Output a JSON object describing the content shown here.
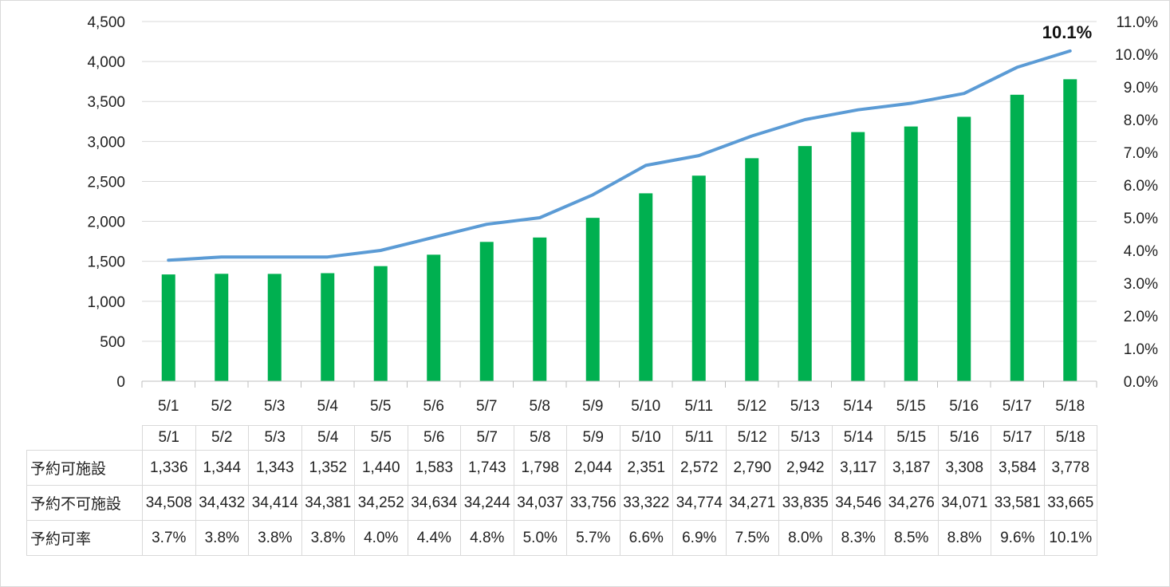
{
  "chart_data": {
    "type": "bar",
    "categories": [
      "5/1",
      "5/2",
      "5/3",
      "5/4",
      "5/5",
      "5/6",
      "5/7",
      "5/8",
      "5/9",
      "5/10",
      "5/11",
      "5/12",
      "5/13",
      "5/14",
      "5/15",
      "5/16",
      "5/17",
      "5/18"
    ],
    "series": [
      {
        "name": "予約可施設",
        "type": "bar",
        "axis": "left",
        "color": "#00b050",
        "values": [
          1336,
          1344,
          1343,
          1352,
          1440,
          1583,
          1743,
          1798,
          2044,
          2351,
          2572,
          2790,
          2942,
          3117,
          3187,
          3308,
          3584,
          3778
        ]
      },
      {
        "name": "予約可率",
        "type": "line",
        "axis": "right",
        "color": "#5b9bd5",
        "values": [
          3.7,
          3.8,
          3.8,
          3.8,
          4.0,
          4.4,
          4.8,
          5.0,
          5.7,
          6.6,
          6.9,
          7.5,
          8.0,
          8.3,
          8.5,
          8.8,
          9.6,
          10.1
        ]
      }
    ],
    "ylim": [
      0,
      4500
    ],
    "y2lim": [
      0,
      11
    ],
    "yticks": [
      "0",
      "500",
      "1,000",
      "1,500",
      "2,000",
      "2,500",
      "3,000",
      "3,500",
      "4,000",
      "4,500"
    ],
    "y2ticks": [
      "0.0%",
      "1.0%",
      "2.0%",
      "3.0%",
      "4.0%",
      "5.0%",
      "6.0%",
      "7.0%",
      "8.0%",
      "9.0%",
      "10.0%",
      "11.0%"
    ],
    "annotation": "10.1%",
    "grid": true
  },
  "table": {
    "columns": [
      "5/1",
      "5/2",
      "5/3",
      "5/4",
      "5/5",
      "5/6",
      "5/7",
      "5/8",
      "5/9",
      "5/10",
      "5/11",
      "5/12",
      "5/13",
      "5/14",
      "5/15",
      "5/16",
      "5/17",
      "5/18"
    ],
    "rows": [
      {
        "label": "予約可施設",
        "cells": [
          "1,336",
          "1,344",
          "1,343",
          "1,352",
          "1,440",
          "1,583",
          "1,743",
          "1,798",
          "2,044",
          "2,351",
          "2,572",
          "2,790",
          "2,942",
          "3,117",
          "3,187",
          "3,308",
          "3,584",
          "3,778"
        ]
      },
      {
        "label": "予約不可施設",
        "cells": [
          "34,508",
          "34,432",
          "34,414",
          "34,381",
          "34,252",
          "34,634",
          "34,244",
          "34,037",
          "33,756",
          "33,322",
          "34,774",
          "34,271",
          "33,835",
          "34,546",
          "34,276",
          "34,071",
          "33,581",
          "33,665"
        ]
      },
      {
        "label": "予約可率",
        "cells": [
          "3.7%",
          "3.8%",
          "3.8%",
          "3.8%",
          "4.0%",
          "4.4%",
          "4.8%",
          "5.0%",
          "5.7%",
          "6.6%",
          "6.9%",
          "7.5%",
          "8.0%",
          "8.3%",
          "8.5%",
          "8.8%",
          "9.6%",
          "10.1%"
        ]
      }
    ]
  }
}
